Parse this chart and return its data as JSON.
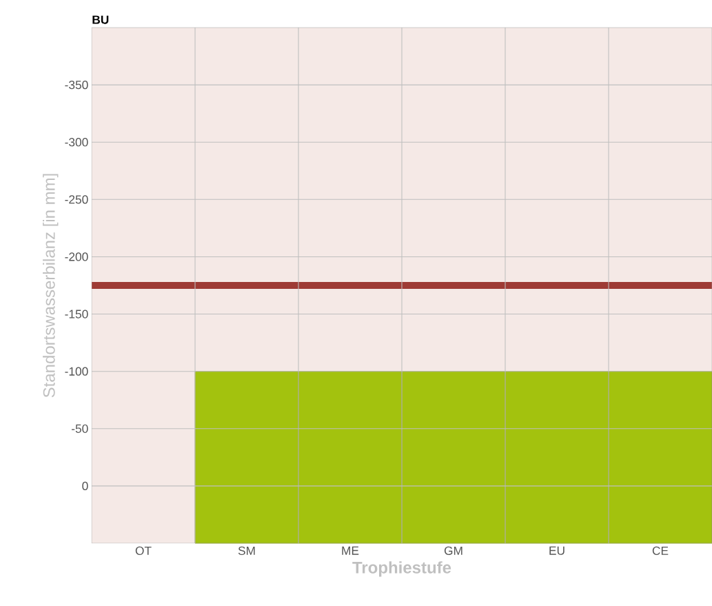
{
  "chart_data": {
    "type": "bar",
    "title": "BU",
    "xlabel": "Trophiestufe",
    "ylabel": "Standortswasserbilanz [in mm]",
    "categories": [
      "OT",
      "SM",
      "ME",
      "GM",
      "EU",
      "CE"
    ],
    "values": [
      null,
      -150,
      -150,
      -150,
      -150,
      -150
    ],
    "base": [
      null,
      50,
      50,
      50,
      50,
      50
    ],
    "color": "#a3c20e",
    "ylim": [
      50,
      -400
    ],
    "yticks": [
      -350,
      -300,
      -250,
      -200,
      -150,
      -100,
      -50,
      0
    ],
    "grid": true,
    "ref_lines": [
      {
        "axis": "y",
        "value": -175,
        "color": "#9e3b35"
      }
    ]
  }
}
